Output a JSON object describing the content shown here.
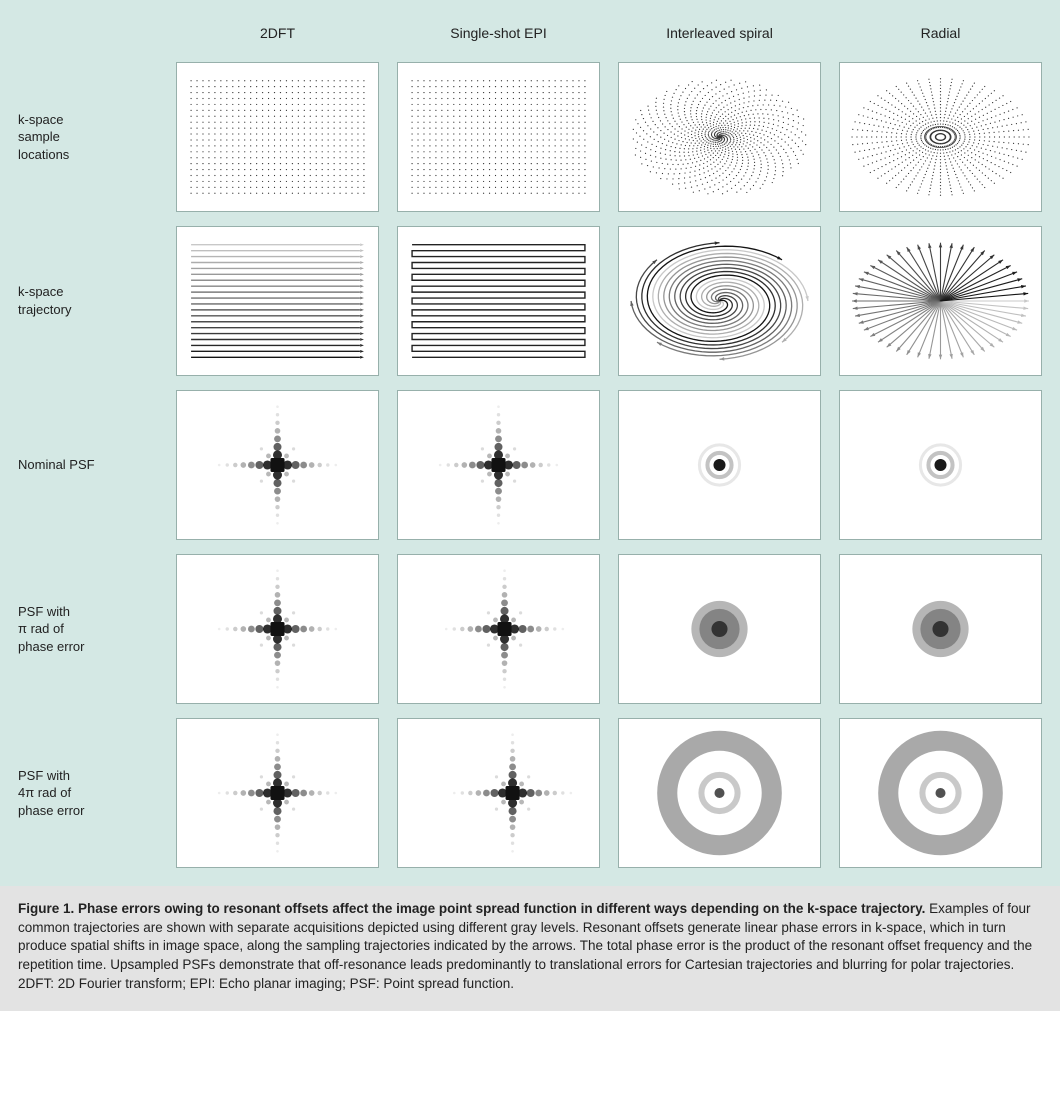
{
  "columns": [
    "2DFT",
    "Single-shot EPI",
    "Interleaved spiral",
    "Radial"
  ],
  "rows": [
    "k-space\nsample\nlocations",
    "k-space\ntrajectory",
    "Nominal PSF",
    "PSF with\nπ rad of\nphase error",
    "PSF with\n4π rad of\nphase error"
  ],
  "caption": {
    "title": "Figure 1. Phase errors owing to resonant offsets affect the image point spread function in different ways depending on the k-space trajectory.",
    "body": " Examples of four common trajectories are shown with separate acquisitions depicted using different gray levels. Resonant offsets generate linear phase errors in k-space, which in turn produce spatial shifts in image space, along the sampling trajectories indicated by the arrows. The total phase error is the product of the resonant offset frequency and the repetition time. Upsampled PSFs demonstrate that off-resonance leads predominantly to translational errors for Cartesian trajectories and blurring for polar trajectories.",
    "abbrev": "2DFT: 2D Fourier transform; EPI: Echo planar imaging; PSF: Point spread function."
  },
  "style": {
    "panel_bg": "#d4e8e4",
    "cell_bg": "#ffffff",
    "cell_border": "#97b0ab",
    "caption_bg": "#e3e3e3",
    "text_color": "#222222",
    "header_fontsize": 14,
    "label_fontsize": 13,
    "caption_fontsize": 13.5
  },
  "diagrams": {
    "cartesian_grid": {
      "nx": 30,
      "ny": 20,
      "dot_r": 0.6,
      "dot_color": "#333"
    },
    "lines_2dft": {
      "n": 20,
      "gray_start": 200,
      "gray_end": 20,
      "arrow": true
    },
    "lines_epi": {
      "n": 20,
      "color": "#222"
    },
    "spiral_samples": {
      "arms": 8,
      "turns": 3.2,
      "pts_per_arm": 120,
      "dot_r": 0.6
    },
    "spiral_traj": {
      "arms": 8,
      "turns": 2.0,
      "gray_start": 200,
      "gray_end": 20
    },
    "radial_samples": {
      "spokes": 48,
      "pts_per_spoke": 18,
      "dot_r": 0.6
    },
    "radial_traj": {
      "spokes": 48,
      "gray_start": 200,
      "gray_end": 20
    },
    "psf_cross": {
      "core": 7,
      "arm_dots": [
        {
          "d": 10,
          "r": 4.5,
          "op": 0.82
        },
        {
          "d": 18,
          "r": 4.0,
          "op": 0.62
        },
        {
          "d": 26,
          "r": 3.4,
          "op": 0.45
        },
        {
          "d": 34,
          "r": 2.8,
          "op": 0.3
        },
        {
          "d": 42,
          "r": 2.2,
          "op": 0.2
        },
        {
          "d": 50,
          "r": 1.7,
          "op": 0.12
        },
        {
          "d": 58,
          "r": 1.3,
          "op": 0.07
        }
      ],
      "diag_dots": [
        {
          "d": 9,
          "r": 2.4,
          "op": 0.28
        },
        {
          "d": 16,
          "r": 1.6,
          "op": 0.14
        }
      ]
    },
    "psf_circ_nominal": {
      "rings": [
        {
          "r": 6,
          "fill": "#1a1a1a",
          "op": 1.0
        },
        {
          "r": 12,
          "fill": "none",
          "stroke": "#888",
          "sw": 4,
          "op": 0.5
        },
        {
          "r": 20,
          "fill": "none",
          "stroke": "#bbb",
          "sw": 3,
          "op": 0.35
        }
      ]
    },
    "psf_circ_pi": {
      "rings": [
        {
          "r": 28,
          "fill": "#7a7a7a",
          "op": 0.55
        },
        {
          "r": 20,
          "fill": "#6a6a6a",
          "op": 0.65
        },
        {
          "r": 8,
          "fill": "#2a2a2a",
          "op": 0.9
        }
      ]
    },
    "psf_circ_4pi": {
      "rings": [
        {
          "r": 52,
          "fill": "none",
          "stroke": "#6f6f6f",
          "sw": 20,
          "op": 0.6
        },
        {
          "r": 18,
          "fill": "none",
          "stroke": "#888",
          "sw": 6,
          "op": 0.45
        },
        {
          "r": 5,
          "fill": "#333",
          "op": 0.85
        }
      ]
    }
  }
}
